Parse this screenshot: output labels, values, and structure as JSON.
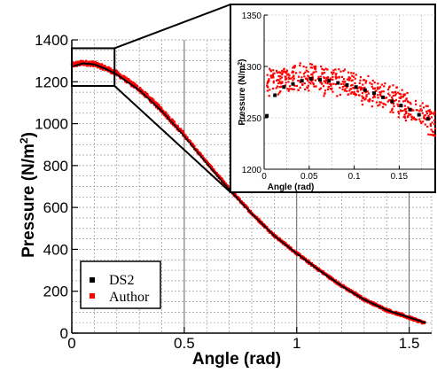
{
  "chart_data": [
    {
      "type": "scatter",
      "xlabel": "Angle (rad)",
      "ylabel": "Pressure (N/m",
      "ylabel_unit_exponent": "2",
      "ylabel_close": ")",
      "xlim": [
        0,
        1.6
      ],
      "ylim": [
        0,
        1400
      ],
      "x_ticks": [
        0,
        0.5,
        1,
        1.5
      ],
      "x_tick_labels": [
        "0",
        "0.5",
        "1",
        "1.5"
      ],
      "y_ticks": [
        0,
        200,
        400,
        600,
        800,
        1000,
        1200,
        1400
      ],
      "y_tick_labels": [
        "0",
        "200",
        "400",
        "600",
        "800",
        "1000",
        "1200",
        "1400"
      ],
      "grid": true,
      "legend_position": "bottom-left",
      "series": [
        {
          "name": "DS2",
          "color": "#000000",
          "marker": "square",
          "x": [
            0.01,
            0.05,
            0.1,
            0.15,
            0.2,
            0.3,
            0.4,
            0.5,
            0.6,
            0.7,
            0.8,
            0.9,
            1.0,
            1.1,
            1.2,
            1.3,
            1.4,
            1.5,
            1.57
          ],
          "y": [
            1275,
            1288,
            1283,
            1262,
            1235,
            1160,
            1060,
            940,
            810,
            685,
            570,
            465,
            380,
            300,
            225,
            160,
            110,
            75,
            50
          ]
        },
        {
          "name": "Author",
          "color": "#ff0000",
          "marker": "square",
          "x": [
            0.0,
            0.05,
            0.1,
            0.15,
            0.2,
            0.3,
            0.4,
            0.5,
            0.6,
            0.7,
            0.8,
            0.9,
            1.0,
            1.1,
            1.2,
            1.3,
            1.4,
            1.5,
            1.57
          ],
          "y": [
            1280,
            1290,
            1285,
            1265,
            1240,
            1165,
            1065,
            945,
            815,
            688,
            572,
            466,
            381,
            301,
            226,
            161,
            110,
            74,
            48
          ]
        }
      ]
    },
    {
      "type": "scatter",
      "xlabel": "Angle (rad)",
      "ylabel": "Pressure (N/m",
      "ylabel_unit_exponent": "2",
      "ylabel_close": ")",
      "xlim": [
        0,
        0.19
      ],
      "ylim": [
        1200,
        1350
      ],
      "x_ticks": [
        0,
        0.05,
        0.1,
        0.15
      ],
      "x_tick_labels": [
        "0",
        "0.05",
        "0.1",
        "0.15"
      ],
      "y_ticks": [
        1200,
        1250,
        1300,
        1350
      ],
      "y_tick_labels": [
        "1200",
        "1250",
        "1300",
        "1350"
      ],
      "grid": true,
      "zoom_region": {
        "x": [
          0,
          0.19
        ],
        "y": [
          1180,
          1360
        ]
      },
      "series": [
        {
          "name": "DS2",
          "color": "#000000",
          "x": [
            0.003,
            0.012,
            0.022,
            0.032,
            0.042,
            0.052,
            0.062,
            0.072,
            0.082,
            0.092,
            0.102,
            0.112,
            0.122,
            0.132,
            0.142,
            0.152,
            0.162,
            0.172,
            0.182
          ],
          "y": [
            1252,
            1272,
            1280,
            1283,
            1286,
            1288,
            1287,
            1286,
            1284,
            1282,
            1280,
            1277,
            1274,
            1270,
            1266,
            1262,
            1258,
            1253,
            1249
          ]
        },
        {
          "name": "Author",
          "color": "#ff0000",
          "x_range": [
            0.003,
            0.19
          ],
          "trend": [
            [
              0.003,
              1283
            ],
            [
              0.05,
              1290
            ],
            [
              0.1,
              1281
            ],
            [
              0.15,
              1265
            ],
            [
              0.19,
              1245
            ]
          ],
          "spread": 12
        }
      ]
    }
  ]
}
